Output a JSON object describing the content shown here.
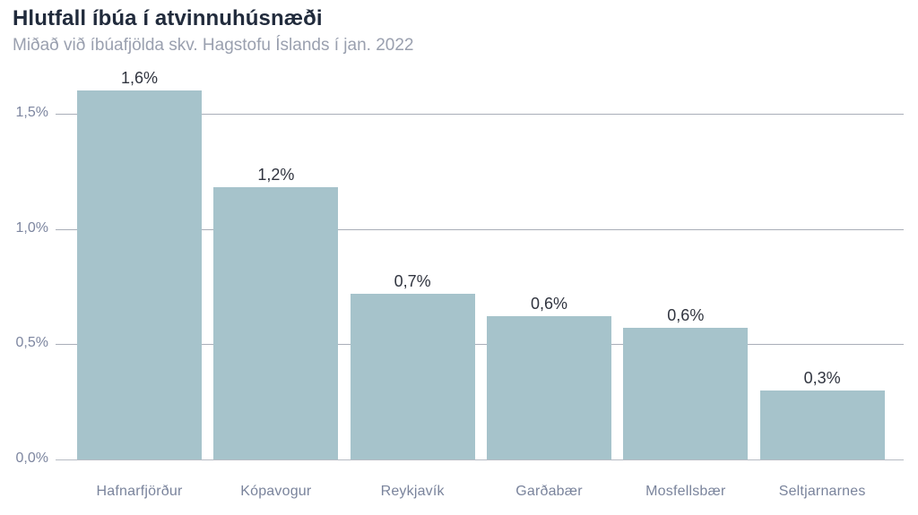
{
  "header": {
    "title": "Hlutfall íbúa í atvinnuhúsnæði",
    "subtitle": "Miðað við íbúafjölda skv. Hagstofu Íslands í jan. 2022"
  },
  "chart_data": {
    "type": "bar",
    "title": "Hlutfall íbúa í atvinnuhúsnæði",
    "subtitle": "Miðað við íbúafjölda skv. Hagstofu Íslands í jan. 2022",
    "categories": [
      "Hafnarfjörður",
      "Kópavogur",
      "Reykjavík",
      "Garðabær",
      "Mosfellsbær",
      "Seltjarnarnes"
    ],
    "values": [
      1.6,
      1.18,
      0.72,
      0.62,
      0.57,
      0.3
    ],
    "value_labels": [
      "1,6%",
      "1,2%",
      "0,7%",
      "0,6%",
      "0,6%",
      "0,3%"
    ],
    "xlabel": "",
    "ylabel": "",
    "ylim": [
      0,
      1.65
    ],
    "y_ticks": [
      {
        "value": 0.0,
        "label": "0,0%"
      },
      {
        "value": 0.5,
        "label": "0,5%"
      },
      {
        "value": 1.0,
        "label": "1,0%"
      },
      {
        "value": 1.5,
        "label": "1,5%"
      }
    ],
    "grid": true,
    "legend": "none",
    "decimal_separator": ","
  },
  "colors": {
    "background": "#ffffff",
    "bar_fill": "#a6c3cb",
    "title_text": "#212b3c",
    "subtitle_text": "#9aa0af",
    "axis_label_text": "#7a849c",
    "value_label_text": "#30343f",
    "gridline": "#a9aeb8"
  }
}
